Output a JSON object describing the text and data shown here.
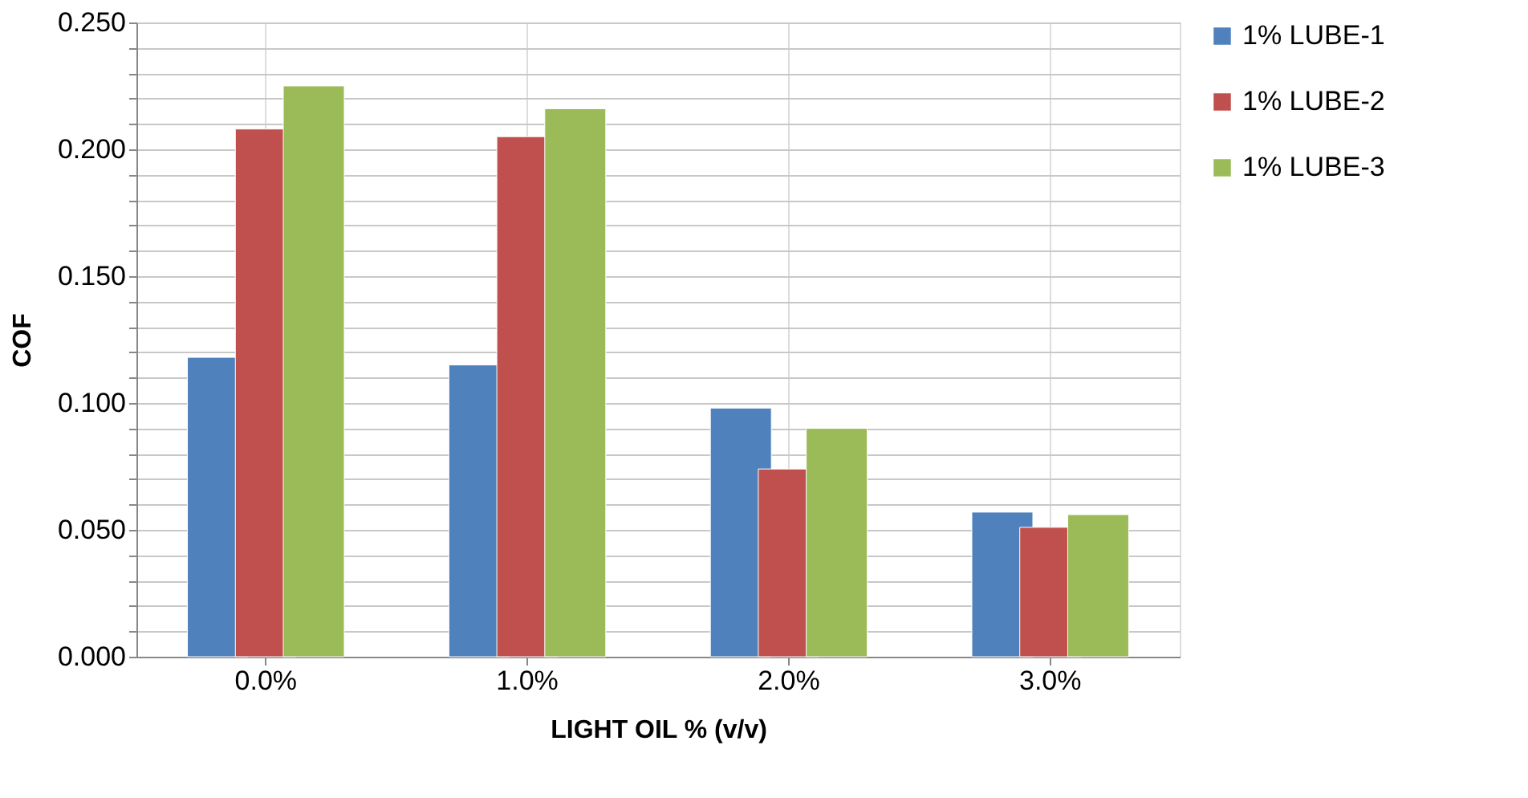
{
  "chart_data": {
    "type": "bar",
    "xlabel": "LIGHT OIL % (v/v)",
    "ylabel": "COF",
    "categories": [
      "0.0%",
      "1.0%",
      "2.0%",
      "3.0%"
    ],
    "series": [
      {
        "name": "1% LUBE-1",
        "color": "#4f81bd",
        "values": [
          0.118,
          0.115,
          0.098,
          0.057
        ]
      },
      {
        "name": "1% LUBE-2",
        "color": "#c0504d",
        "values": [
          0.208,
          0.205,
          0.074,
          0.051
        ]
      },
      {
        "name": "1% LUBE-3",
        "color": "#9bbb59",
        "values": [
          0.225,
          0.216,
          0.09,
          0.056
        ]
      }
    ],
    "ylim": [
      0,
      0.25
    ],
    "yticks": [
      "0.000",
      {
        "value": 0.01,
        "label": null
      },
      {
        "value": 0.02,
        "label": null
      },
      {
        "value": 0.03,
        "label": null
      },
      {
        "value": 0.04,
        "label": null
      },
      {
        "value": 0.05,
        "label": "0.050"
      },
      {
        "value": 0.06,
        "label": null
      },
      {
        "value": 0.07,
        "label": null
      },
      {
        "value": 0.08,
        "label": null
      },
      {
        "value": 0.09,
        "label": null
      },
      {
        "value": 0.1,
        "label": "0.100"
      },
      {
        "value": 0.11,
        "label": null
      },
      {
        "value": 0.12,
        "label": null
      },
      {
        "value": 0.13,
        "label": null
      },
      {
        "value": 0.14,
        "label": null
      },
      {
        "value": 0.15,
        "label": "0.150"
      },
      {
        "value": 0.16,
        "label": null
      },
      {
        "value": 0.17,
        "label": null
      },
      {
        "value": 0.18,
        "label": null
      },
      {
        "value": 0.19,
        "label": null
      },
      {
        "value": 0.2,
        "label": "0.200"
      },
      {
        "value": 0.21,
        "label": null
      },
      {
        "value": 0.22,
        "label": null
      },
      {
        "value": 0.23,
        "label": null
      },
      {
        "value": 0.24,
        "label": null
      },
      {
        "value": 0.25,
        "label": "0.250"
      }
    ],
    "grid": true,
    "legend": "right"
  }
}
